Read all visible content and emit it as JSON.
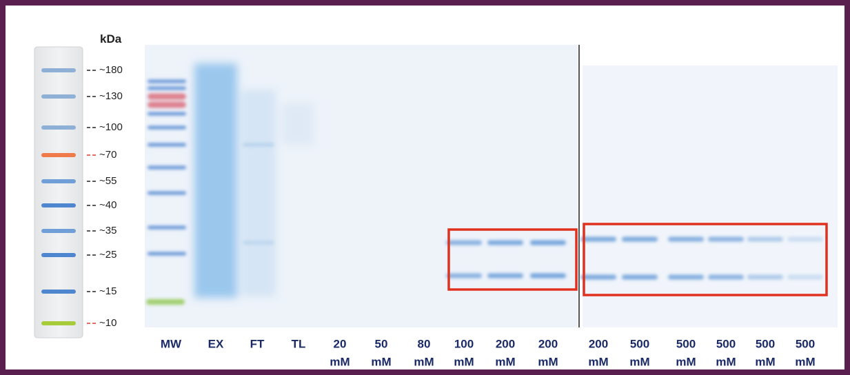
{
  "ladder": {
    "unit": "kDa",
    "markers": [
      {
        "label": "~180",
        "color": "#222222"
      },
      {
        "label": "~130",
        "color": "#222222"
      },
      {
        "label": "~100",
        "color": "#222222"
      },
      {
        "label": "~70",
        "color": "#e03a2a"
      },
      {
        "label": "~55",
        "color": "#222222"
      },
      {
        "label": "~40",
        "color": "#222222"
      },
      {
        "label": "~35",
        "color": "#222222"
      },
      {
        "label": "~25",
        "color": "#222222"
      },
      {
        "label": "~15",
        "color": "#222222"
      },
      {
        "label": "~10",
        "color": "#e03a2a"
      }
    ]
  },
  "lanes": [
    [
      "MW"
    ],
    [
      "EX"
    ],
    [
      "FT"
    ],
    [
      "TL"
    ],
    [
      "20",
      "mM"
    ],
    [
      "50",
      "mM"
    ],
    [
      "80",
      "mM"
    ],
    [
      "100",
      "mM"
    ],
    [
      "200",
      "mM"
    ],
    [
      "200",
      "mM"
    ],
    [
      "200",
      "mM"
    ],
    [
      "500",
      "mM"
    ],
    [
      "500",
      "mM"
    ],
    [
      "500",
      "mM"
    ],
    [
      "500",
      "mM"
    ],
    [
      "500",
      "mM"
    ]
  ]
}
